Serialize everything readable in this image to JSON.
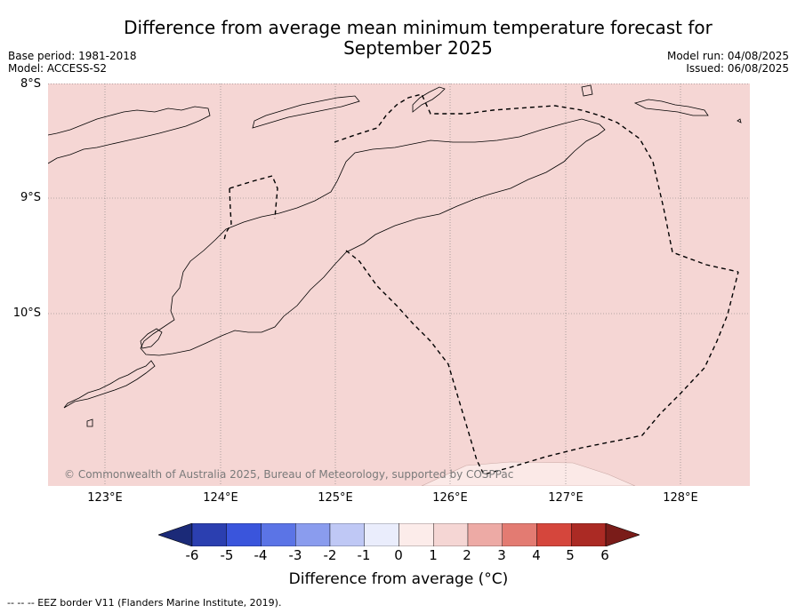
{
  "header": {
    "title_line1": "Difference from average mean minimum temperature forecast for",
    "title_line2": "September 2025",
    "base_period": "Base period: 1981-2018",
    "model": "Model: ACCESS-S2",
    "model_run": "Model run: 04/08/2025",
    "issued": "Issued: 06/08/2025"
  },
  "map": {
    "lat_labels": [
      "8°S",
      "9°S",
      "10°S"
    ],
    "lon_labels": [
      "123°E",
      "124°E",
      "125°E",
      "126°E",
      "127°E",
      "128°E"
    ],
    "copyright": "© Commonwealth of Australia 2025, Bureau of Meteorology, supported by COSPPac",
    "fill_color": "#f5d6d4",
    "light_patch_color": "#fbe9e7",
    "coast_color": "#000000",
    "eez_style": "dashed"
  },
  "colorbar": {
    "ticks": [
      "-6",
      "-5",
      "-4",
      "-3",
      "-2",
      "-1",
      "0",
      "1",
      "2",
      "3",
      "4",
      "5",
      "6"
    ],
    "colors": [
      "#1b2a78",
      "#2b3fb0",
      "#3a55dc",
      "#5b74e6",
      "#8a9cee",
      "#bfc8f5",
      "#eaedfc",
      "#fcecea",
      "#f5d6d4",
      "#edaaa5",
      "#e37b72",
      "#d5463c",
      "#ab2a24",
      "#7a1c19"
    ],
    "label": "Difference from average (°C)"
  },
  "footnote": "--  --  -- EEZ border V11 (Flanders Marine Institute, 2019)."
}
